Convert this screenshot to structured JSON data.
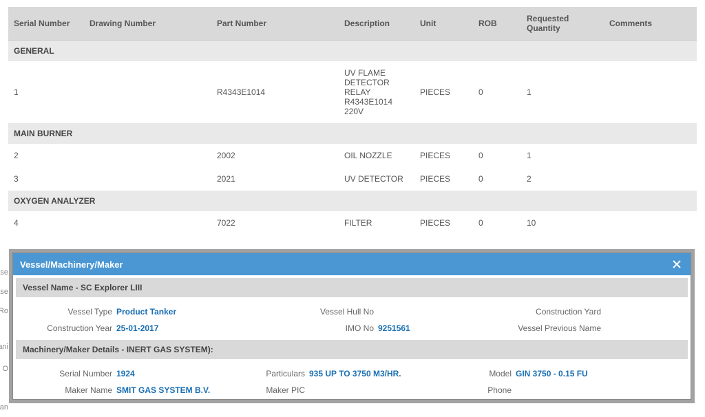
{
  "table": {
    "headers": {
      "serial": "Serial Number",
      "drawing": "Drawing Number",
      "part": "Part Number",
      "desc": "Description",
      "unit": "Unit",
      "rob": "ROB",
      "reqqty": "Requested Quantity",
      "comments": "Comments"
    },
    "groups": [
      {
        "name": "GENERAL",
        "rows": [
          {
            "serial": "1",
            "drawing": "",
            "part": "R4343E1014",
            "desc": "UV FLAME DETECTOR RELAY R4343E1014 220V",
            "unit": "PIECES",
            "rob": "0",
            "reqqty": "1",
            "comments": ""
          }
        ]
      },
      {
        "name": "MAIN BURNER",
        "rows": [
          {
            "serial": "2",
            "drawing": "",
            "part": "2002",
            "desc": "OIL NOZZLE",
            "unit": "PIECES",
            "rob": "0",
            "reqqty": "1",
            "comments": ""
          },
          {
            "serial": "3",
            "drawing": "",
            "part": "2021",
            "desc": "UV DETECTOR",
            "unit": "PIECES",
            "rob": "0",
            "reqqty": "2",
            "comments": ""
          }
        ]
      },
      {
        "name": "OXYGEN ANALYZER",
        "rows": [
          {
            "serial": "4",
            "drawing": "",
            "part": "7022",
            "desc": "FILTER",
            "unit": "PIECES",
            "rob": "0",
            "reqqty": "10",
            "comments": ""
          }
        ]
      }
    ]
  },
  "dialog": {
    "title": "Vessel/Machinery/Maker",
    "vessel_header": "Vessel Name - SC Explorer LIII",
    "vessel": {
      "type_label": "Vessel Type",
      "type_value": "Product Tanker",
      "hull_label": "Vessel Hull No",
      "hull_value": "",
      "yard_label": "Construction Yard",
      "yard_value": "",
      "year_label": "Construction Year",
      "year_value": "25-01-2017",
      "imo_label": "IMO No",
      "imo_value": "9251561",
      "prev_label": "Vessel Previous Name",
      "prev_value": ""
    },
    "machinery_header": "Machinery/Maker Details - INERT GAS SYSTEM):",
    "machinery": {
      "serial_label": "Serial Number",
      "serial_value": "1924",
      "particulars_label": "Particulars",
      "particulars_value": "935 UP TO 3750 M3/HR.",
      "model_label": "Model",
      "model_value": "GIN 3750 - 0.15 FU",
      "maker_label": "Maker Name",
      "maker_value": "SMIT GAS SYSTEM B.V.",
      "pic_label": "Maker PIC",
      "pic_value": "",
      "phone_label": "Phone",
      "phone_value": ""
    }
  },
  "bg": {
    "l1": "ase",
    "l2": "ase",
    "l3": "Ro",
    "l4": "ani",
    "l5": "O",
    "l6": "an"
  }
}
